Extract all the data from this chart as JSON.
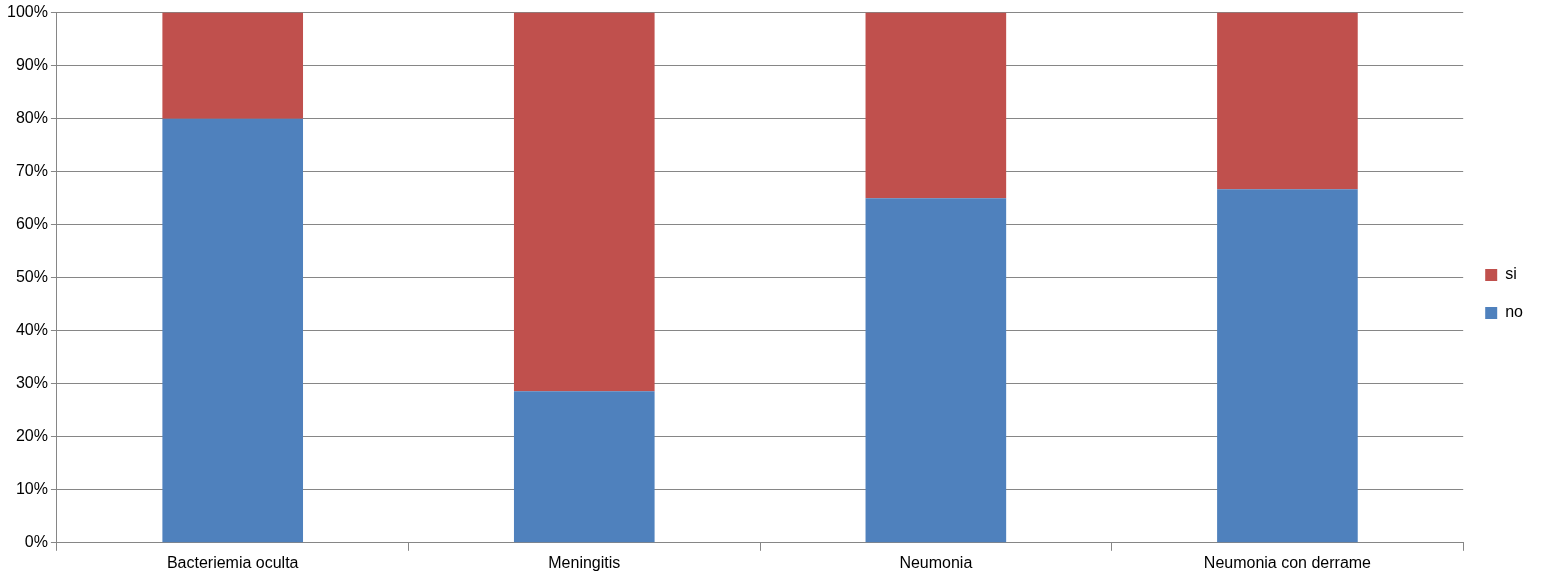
{
  "chart_data": {
    "type": "bar",
    "stacked": true,
    "categories": [
      "Bacteriemia oculta",
      "Meningitis",
      "Neumonia",
      "Neumonia con derrame"
    ],
    "series": [
      {
        "name": "no",
        "color": "#4f81bd",
        "values": [
          80,
          28.6,
          65,
          66.7
        ]
      },
      {
        "name": "si",
        "color": "#c0504d",
        "values": [
          20,
          71.4,
          35,
          33.3
        ]
      }
    ],
    "ylim": [
      0,
      100
    ],
    "yticks": [
      {
        "value": 0,
        "label": "0%"
      },
      {
        "value": 10,
        "label": "10%"
      },
      {
        "value": 20,
        "label": "20%"
      },
      {
        "value": 30,
        "label": "30%"
      },
      {
        "value": 40,
        "label": "40%"
      },
      {
        "value": 50,
        "label": "50%"
      },
      {
        "value": 60,
        "label": "60%"
      },
      {
        "value": 70,
        "label": "70%"
      },
      {
        "value": 80,
        "label": "80%"
      },
      {
        "value": 90,
        "label": "90%"
      },
      {
        "value": 100,
        "label": "100%"
      }
    ],
    "grid": "y",
    "legend": "right"
  }
}
